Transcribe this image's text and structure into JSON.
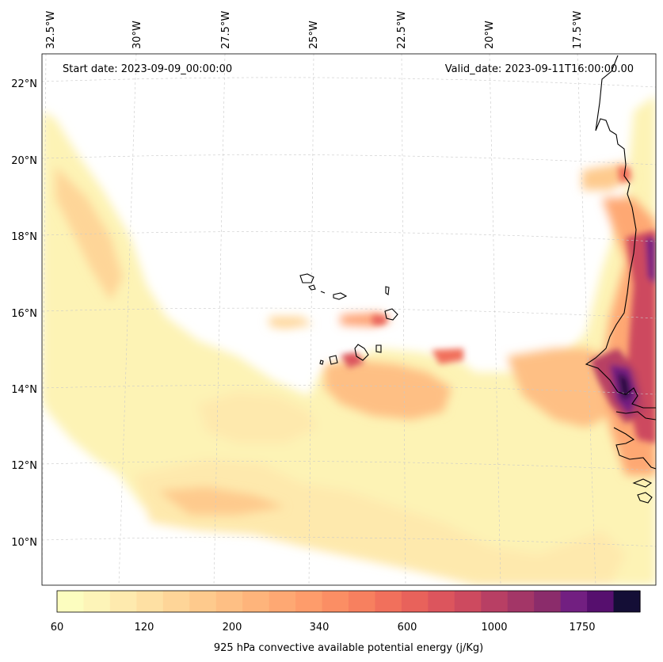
{
  "header": {
    "start_date": "Start date: 2023-09-09_00:00:00",
    "valid_date": "Valid_date: 2023-09-11T16:00:00.00"
  },
  "axes": {
    "longitude_labels": [
      "32.5°W",
      "30°W",
      "27.5°W",
      "25°W",
      "22.5°W",
      "20°W",
      "17.5°W"
    ],
    "latitude_labels": [
      "22°N",
      "20°N",
      "18°N",
      "16°N",
      "14°N",
      "12°N",
      "10°N"
    ],
    "lon_range": [
      -32.6,
      -15.9
    ],
    "lat_range": [
      8.9,
      22.8
    ],
    "grid": true
  },
  "colorbar": {
    "title": "925 hPa convective available potential energy (j/Kg)",
    "tick_labels": [
      "60",
      "120",
      "200",
      "340",
      "600",
      "1000",
      "1750"
    ],
    "colors": [
      "#fcfdbf",
      "#fdf4b8",
      "#feeaae",
      "#fee0a3",
      "#fed598",
      "#feca8d",
      "#febf84",
      "#feb47b",
      "#fea873",
      "#fe9c6b",
      "#fb8e64",
      "#f7805f",
      "#f1705c",
      "#e8625b",
      "#dc555d",
      "#cd4a5f",
      "#b83f64",
      "#a33667",
      "#8b2c6b",
      "#721f81",
      "#560f6e",
      "#140e36"
    ]
  },
  "layers": {
    "coastline": "black",
    "field": "convective available potential energy"
  }
}
